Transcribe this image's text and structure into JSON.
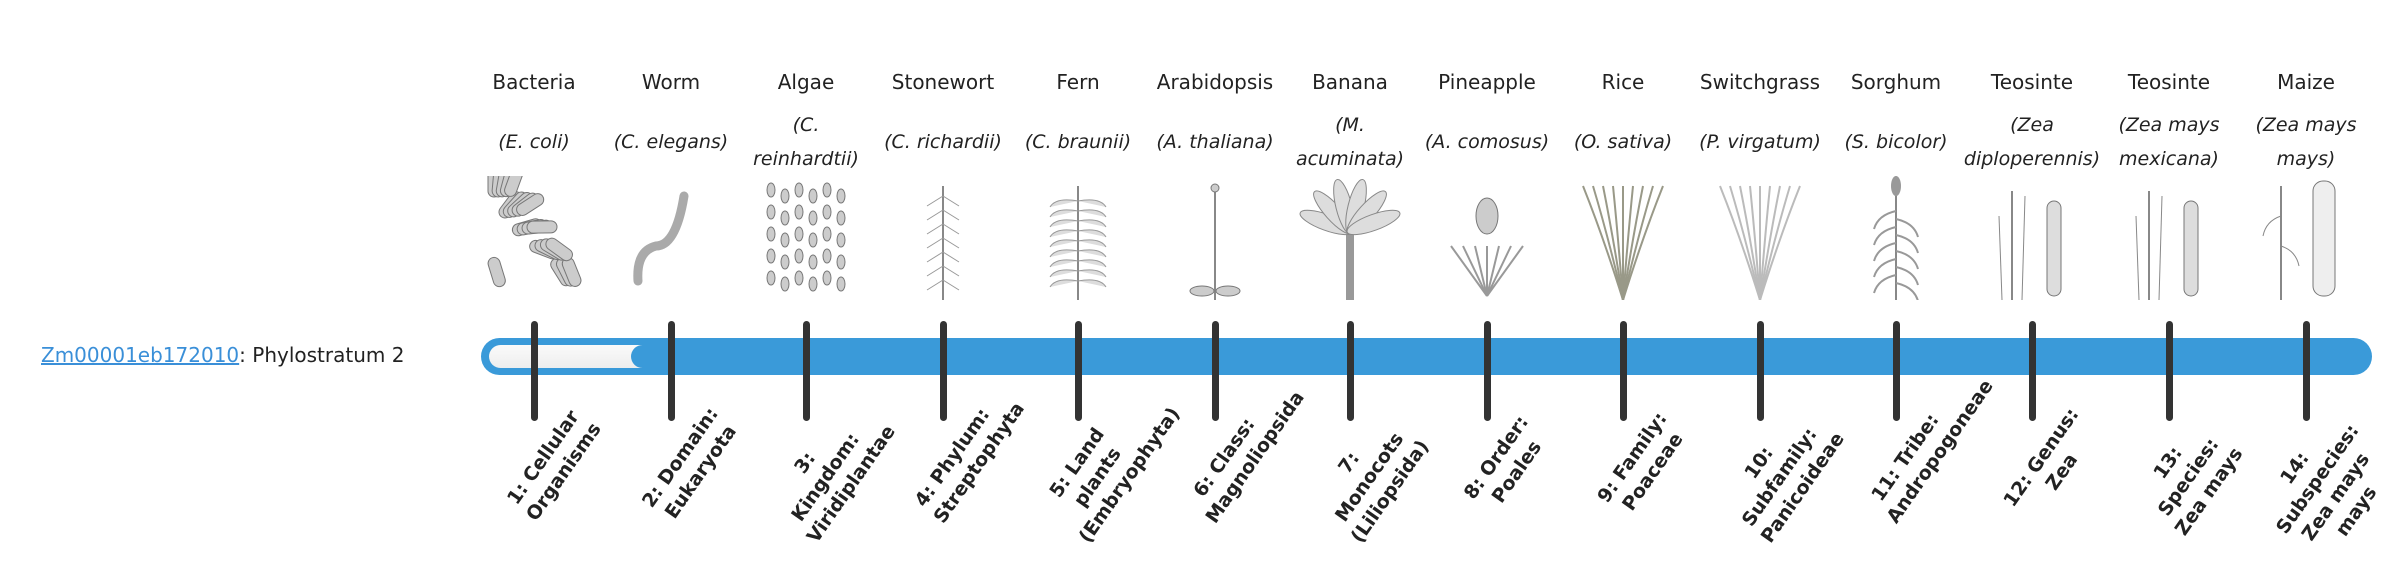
{
  "gene": {
    "id": "Zm00001eb172010",
    "separator": ": ",
    "label": "Phylostratum 2"
  },
  "phylostratum_value": 2,
  "colors": {
    "bar": "#3a9ad9",
    "link": "#3a8fd8",
    "tick": "#333333"
  },
  "organisms": [
    {
      "common": "Bacteria",
      "species": "(E. coli)",
      "icon": "bacteria-icon"
    },
    {
      "common": "Worm",
      "species": "(C. elegans)",
      "icon": "worm-icon"
    },
    {
      "common": "Algae",
      "species": "(C. reinhardtii)",
      "icon": "algae-icon"
    },
    {
      "common": "Stonewort",
      "species": "(C. richardii)",
      "icon": "stonewort-icon"
    },
    {
      "common": "Fern",
      "species": "(C. braunii)",
      "icon": "fern-icon"
    },
    {
      "common": "Arabidopsis",
      "species": "(A. thaliana)",
      "icon": "arabidopsis-icon"
    },
    {
      "common": "Banana",
      "species": "(M. acuminata)",
      "icon": "banana-icon"
    },
    {
      "common": "Pineapple",
      "species": "(A. comosus)",
      "icon": "pineapple-icon"
    },
    {
      "common": "Rice",
      "species": "(O. sativa)",
      "icon": "rice-icon"
    },
    {
      "common": "Switchgrass",
      "species": "(P. virgatum)",
      "icon": "switchgrass-icon"
    },
    {
      "common": "Sorghum",
      "species": "(S. bicolor)",
      "icon": "sorghum-icon"
    },
    {
      "common": "Teosinte",
      "species": "(Zea diploperennis)",
      "icon": "teosinte-icon"
    },
    {
      "common": "Teosinte",
      "species": "(Zea mays mexicana)",
      "icon": "teosinte-icon"
    },
    {
      "common": "Maize",
      "species": "(Zea mays mays)",
      "icon": "maize-icon"
    }
  ],
  "levels": [
    "1: Cellular Organisms",
    "2: Domain: Eukaryota",
    "3: Kingdom: Viridiplantae",
    "4: Phylum: Streptophyta",
    "5: Land plants (Embryophyta)",
    "6: Class: Magnoliopsida",
    "7: Monocots (Liliopsida)",
    "8: Order: Poales",
    "9: Family: Poaceae",
    "10: Subfamily: Panicoideae",
    "11: Tribe: Andropogoneae",
    "12: Genus: Zea",
    "13: Species: Zea mays",
    "14: Subspecies: Zea mays mays"
  ]
}
